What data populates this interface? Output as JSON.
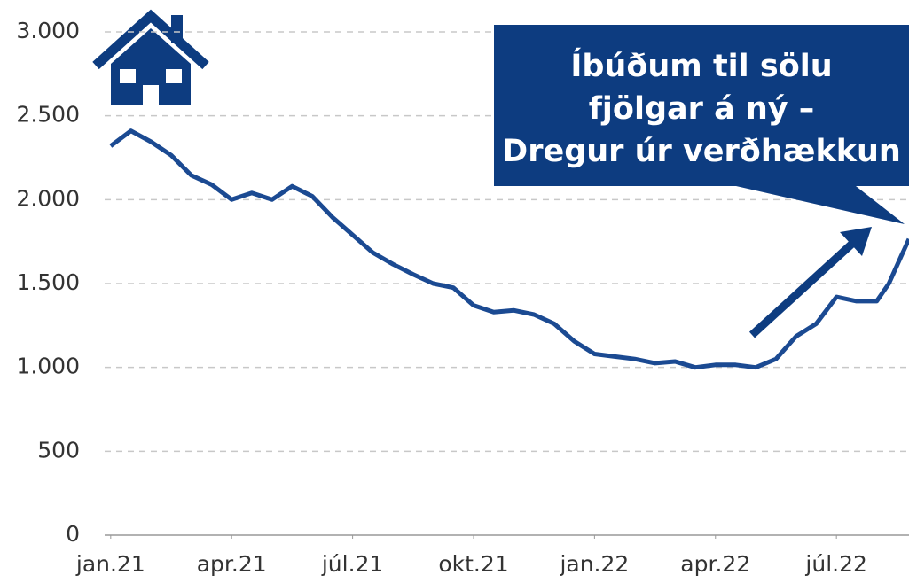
{
  "chart_data": {
    "type": "line",
    "annotation": [
      "Íbúðum til sölu",
      "fjölgar á ný –",
      "Dregur úr verðhækkun"
    ],
    "color": "#1b4a92",
    "x": [
      0,
      0.5,
      1,
      1.5,
      2,
      2.5,
      3,
      3.5,
      4,
      4.5,
      5,
      5.5,
      6,
      6.5,
      7,
      7.5,
      8,
      8.5,
      9,
      9.5,
      10,
      10.5,
      11,
      11.5,
      12,
      12.5,
      13,
      13.5,
      14,
      14.5,
      15,
      15.5,
      16,
      16.5,
      17,
      17.5,
      18,
      18.5,
      19,
      19.3,
      19.6,
      19.8
    ],
    "values": [
      2320,
      2410,
      2345,
      2265,
      2145,
      2090,
      2000,
      2040,
      2000,
      2080,
      2020,
      1895,
      1790,
      1685,
      1615,
      1555,
      1500,
      1475,
      1370,
      1330,
      1340,
      1315,
      1260,
      1155,
      1080,
      1065,
      1050,
      1025,
      1035,
      1000,
      1015,
      1015,
      1000,
      1050,
      1185,
      1260,
      1420,
      1395,
      1395,
      1500,
      1660,
      1765
    ],
    "xlim": [
      -0.15,
      19.8
    ],
    "xticks": [
      {
        "value": 0,
        "label": "jan.21"
      },
      {
        "value": 3,
        "label": "apr.21"
      },
      {
        "value": 6,
        "label": "júl.21"
      },
      {
        "value": 9,
        "label": "okt.21"
      },
      {
        "value": 12,
        "label": "jan.22"
      },
      {
        "value": 15,
        "label": "apr.22"
      },
      {
        "value": 18,
        "label": "júl.22"
      }
    ],
    "ylim": [
      0,
      3000
    ],
    "yticks": [
      0,
      {
        "value": 500,
        "label": "500"
      },
      {
        "value": 1000,
        "label": "1.000"
      },
      {
        "value": 1500,
        "label": "1.500"
      },
      {
        "value": 2000,
        "label": "2.000"
      },
      {
        "value": 2500,
        "label": "2.500"
      },
      {
        "value": 3000,
        "label": "3.000"
      }
    ],
    "grid": true
  }
}
